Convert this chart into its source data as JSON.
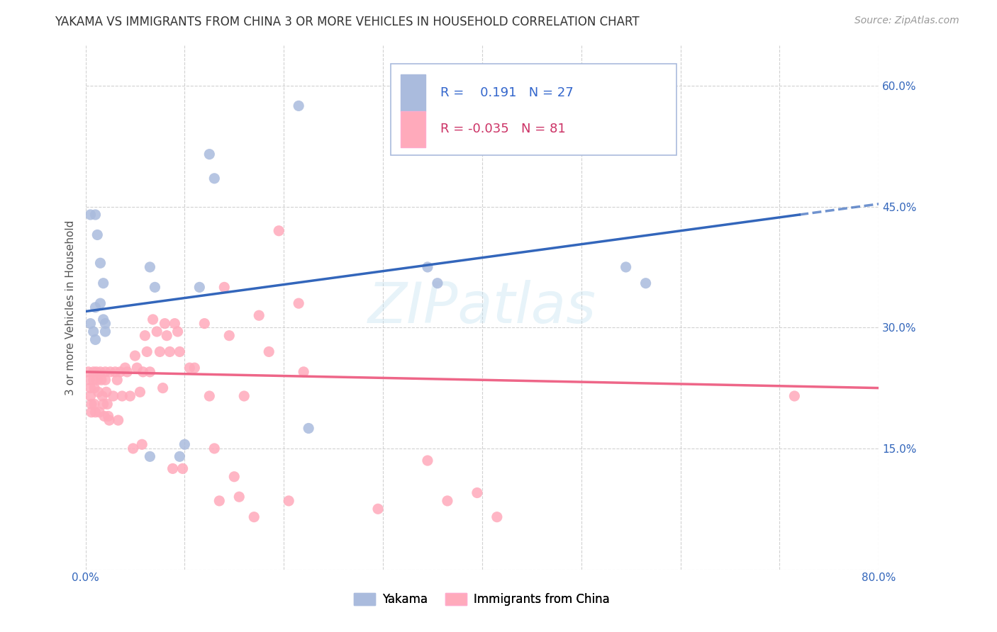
{
  "title": "YAKAMA VS IMMIGRANTS FROM CHINA 3 OR MORE VEHICLES IN HOUSEHOLD CORRELATION CHART",
  "source": "Source: ZipAtlas.com",
  "ylabel": "3 or more Vehicles in Household",
  "x_min": 0.0,
  "x_max": 0.8,
  "y_min": 0.0,
  "y_max": 0.65,
  "x_ticks": [
    0.0,
    0.1,
    0.2,
    0.3,
    0.4,
    0.5,
    0.6,
    0.7,
    0.8
  ],
  "y_ticks": [
    0.0,
    0.15,
    0.3,
    0.45,
    0.6
  ],
  "blue_R": 0.191,
  "blue_N": 27,
  "pink_R": -0.035,
  "pink_N": 81,
  "blue_color": "#AABBDD",
  "pink_color": "#FFAABB",
  "blue_line_color": "#3366BB",
  "pink_line_color": "#EE6688",
  "legend_label_blue": "Yakama",
  "legend_label_pink": "Immigrants from China",
  "blue_line_x0": 0.0,
  "blue_line_y0": 0.32,
  "blue_line_x1": 0.72,
  "blue_line_y1": 0.44,
  "pink_line_x0": 0.0,
  "pink_line_y0": 0.245,
  "pink_line_x1": 0.8,
  "pink_line_y1": 0.225,
  "blue_scatter_x": [
    0.005,
    0.01,
    0.012,
    0.015,
    0.018,
    0.02,
    0.005,
    0.008,
    0.01,
    0.018,
    0.02,
    0.01,
    0.015,
    0.065,
    0.07,
    0.125,
    0.13,
    0.115,
    0.215,
    0.225,
    0.065,
    0.095,
    0.1,
    0.545,
    0.565,
    0.345,
    0.355
  ],
  "blue_scatter_y": [
    0.44,
    0.44,
    0.415,
    0.38,
    0.355,
    0.305,
    0.305,
    0.295,
    0.285,
    0.31,
    0.295,
    0.325,
    0.33,
    0.375,
    0.35,
    0.515,
    0.485,
    0.35,
    0.575,
    0.175,
    0.14,
    0.14,
    0.155,
    0.375,
    0.355,
    0.375,
    0.355
  ],
  "pink_scatter_x": [
    0.003,
    0.004,
    0.005,
    0.005,
    0.006,
    0.006,
    0.008,
    0.008,
    0.009,
    0.009,
    0.01,
    0.011,
    0.012,
    0.013,
    0.014,
    0.015,
    0.016,
    0.017,
    0.018,
    0.019,
    0.02,
    0.02,
    0.021,
    0.022,
    0.023,
    0.024,
    0.025,
    0.028,
    0.03,
    0.032,
    0.033,
    0.035,
    0.037,
    0.04,
    0.042,
    0.045,
    0.048,
    0.05,
    0.052,
    0.055,
    0.057,
    0.058,
    0.06,
    0.062,
    0.065,
    0.068,
    0.072,
    0.075,
    0.078,
    0.08,
    0.082,
    0.085,
    0.088,
    0.09,
    0.093,
    0.095,
    0.098,
    0.105,
    0.11,
    0.12,
    0.125,
    0.13,
    0.135,
    0.14,
    0.145,
    0.15,
    0.155,
    0.16,
    0.17,
    0.175,
    0.185,
    0.195,
    0.205,
    0.215,
    0.22,
    0.295,
    0.345,
    0.365,
    0.395,
    0.415,
    0.715
  ],
  "pink_scatter_y": [
    0.245,
    0.235,
    0.225,
    0.215,
    0.205,
    0.195,
    0.245,
    0.235,
    0.225,
    0.205,
    0.195,
    0.245,
    0.235,
    0.22,
    0.195,
    0.245,
    0.235,
    0.215,
    0.205,
    0.19,
    0.245,
    0.235,
    0.22,
    0.205,
    0.19,
    0.185,
    0.245,
    0.215,
    0.245,
    0.235,
    0.185,
    0.245,
    0.215,
    0.25,
    0.245,
    0.215,
    0.15,
    0.265,
    0.25,
    0.22,
    0.155,
    0.245,
    0.29,
    0.27,
    0.245,
    0.31,
    0.295,
    0.27,
    0.225,
    0.305,
    0.29,
    0.27,
    0.125,
    0.305,
    0.295,
    0.27,
    0.125,
    0.25,
    0.25,
    0.305,
    0.215,
    0.15,
    0.085,
    0.35,
    0.29,
    0.115,
    0.09,
    0.215,
    0.065,
    0.315,
    0.27,
    0.42,
    0.085,
    0.33,
    0.245,
    0.075,
    0.135,
    0.085,
    0.095,
    0.065,
    0.215
  ],
  "watermark_text": "ZIPatlas",
  "watermark_color": "#BBDDEE",
  "watermark_alpha": 0.35,
  "title_fontsize": 12,
  "source_fontsize": 10,
  "tick_fontsize": 11,
  "ylabel_fontsize": 11,
  "background_color": "#ffffff",
  "grid_color": "#cccccc",
  "grid_linestyle": "--",
  "grid_linewidth": 0.8,
  "scatter_size": 120
}
